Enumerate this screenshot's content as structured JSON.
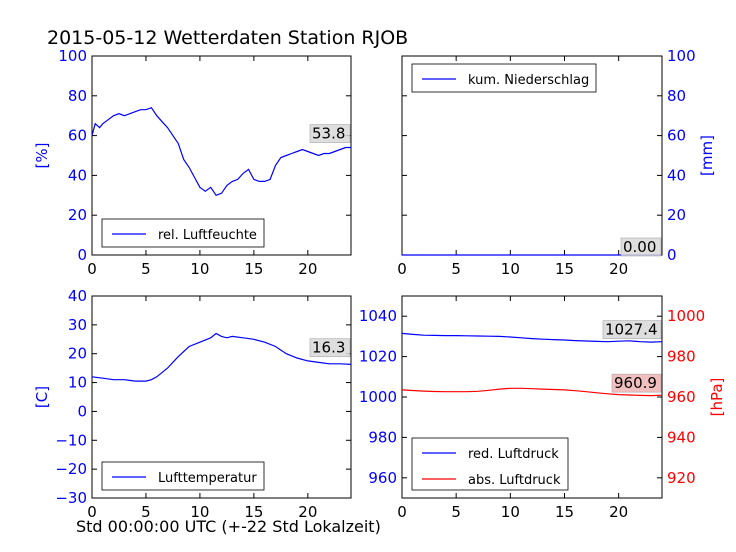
{
  "title": "2015-05-12 Wetterdaten Station RJOB",
  "xlabel": "Std 00:00:00 UTC (+-22 Std Lokalzeit)",
  "colors": {
    "blue": "#0000ff",
    "red": "#ff0000",
    "label_bg": "#d9d9d9",
    "label_bg_red": "#f0b4b4"
  },
  "chart_data": [
    {
      "type": "line",
      "panel": "top-left",
      "ylabel": "[%]",
      "ylim": [
        0,
        100
      ],
      "yticks": [
        "0",
        "20",
        "40",
        "60",
        "80",
        "100"
      ],
      "xlim": [
        0,
        24
      ],
      "xticks": [
        "0",
        "5",
        "10",
        "15",
        "20"
      ],
      "legend": "bottom-left",
      "series": [
        {
          "name": "rel. Luftfeuchte",
          "color": "#0000ff",
          "x": [
            0,
            0.3,
            0.7,
            1,
            1.5,
            2,
            2.5,
            3,
            3.5,
            4,
            4.5,
            5,
            5.5,
            6,
            6.5,
            7,
            7.5,
            8,
            8.5,
            9,
            9.5,
            10,
            10.5,
            11,
            11.5,
            12,
            12.5,
            13,
            13.5,
            14,
            14.5,
            15,
            15.5,
            16,
            16.5,
            17,
            17.5,
            18,
            18.5,
            19,
            19.5,
            20,
            20.5,
            21,
            21.5,
            22,
            22.5,
            23,
            23.5,
            24
          ],
          "y": [
            60,
            66,
            64,
            66,
            68,
            70,
            71,
            70,
            71,
            72,
            73,
            73,
            74,
            70,
            67,
            64,
            60,
            56,
            48,
            44,
            39,
            34,
            32,
            34,
            30,
            31,
            35,
            37,
            38,
            41,
            43,
            38,
            37,
            37,
            38,
            45,
            49,
            50,
            51,
            52,
            53,
            52,
            51,
            50,
            51,
            51,
            52,
            53,
            54,
            54
          ]
        }
      ],
      "last_value_label": "53.8"
    },
    {
      "type": "line",
      "panel": "top-right",
      "ylabel": "[mm]",
      "ylim": [
        0,
        100
      ],
      "yticks": [
        "0",
        "20",
        "40",
        "60",
        "80",
        "100"
      ],
      "xlim": [
        0,
        24
      ],
      "xticks": [
        "0",
        "5",
        "10",
        "15",
        "20"
      ],
      "legend": "top-left",
      "series": [
        {
          "name": "kum. Niederschlag",
          "color": "#0000ff",
          "x": [
            0,
            24
          ],
          "y": [
            0,
            0
          ]
        }
      ],
      "last_value_label": "0.00"
    },
    {
      "type": "line",
      "panel": "bottom-left",
      "ylabel": "[C]",
      "ylim": [
        -30,
        40
      ],
      "yticks": [
        "−30",
        "−20",
        "−10",
        "0",
        "10",
        "20",
        "30",
        "40"
      ],
      "xlim": [
        0,
        24
      ],
      "xticks": [
        "0",
        "5",
        "10",
        "15",
        "20"
      ],
      "legend": "bottom-left",
      "series": [
        {
          "name": "Lufttemperatur",
          "color": "#0000ff",
          "x": [
            0,
            1,
            2,
            3,
            4,
            5,
            5.5,
            6,
            7,
            8,
            9,
            10,
            11,
            11.5,
            12,
            12.5,
            13,
            14,
            15,
            16,
            17,
            18,
            19,
            20,
            21,
            22,
            23,
            24
          ],
          "y": [
            12,
            11.5,
            11,
            11,
            10.5,
            10.5,
            11,
            12,
            15,
            19,
            22.5,
            24,
            25.5,
            27,
            26,
            25.5,
            26,
            25.5,
            25,
            24,
            22.5,
            20,
            18.5,
            17.5,
            17,
            16.5,
            16.5,
            16.3
          ]
        }
      ],
      "last_value_label": "16.3"
    },
    {
      "type": "line",
      "panel": "bottom-right",
      "ylabel_left": "",
      "ylabel_right": "[hPa]",
      "ylim_left": [
        950,
        1050
      ],
      "ylim_right": [
        910,
        1010
      ],
      "yticks_left": [
        "960",
        "980",
        "1000",
        "1020",
        "1040"
      ],
      "yticks_right": [
        "920",
        "940",
        "960",
        "980",
        "1000"
      ],
      "xlim": [
        0,
        24
      ],
      "xticks": [
        "0",
        "5",
        "10",
        "15",
        "20"
      ],
      "legend": "bottom-left",
      "series": [
        {
          "name": "red. Luftdruck",
          "color": "#0000ff",
          "axis": "left",
          "x": [
            0,
            1,
            2,
            3,
            4,
            5,
            6,
            7,
            8,
            9,
            10,
            11,
            12,
            13,
            14,
            15,
            16,
            17,
            18,
            19,
            20,
            21,
            22,
            23,
            24
          ],
          "y": [
            1031.5,
            1031,
            1030.6,
            1030.5,
            1030.4,
            1030.4,
            1030.3,
            1030.2,
            1030.1,
            1030,
            1029.7,
            1029.3,
            1028.9,
            1028.6,
            1028.4,
            1028.2,
            1027.9,
            1027.7,
            1027.5,
            1027.4,
            1027.6,
            1027.8,
            1027.4,
            1027.2,
            1027.4
          ]
        },
        {
          "name": "abs. Luftdruck",
          "color": "#ff0000",
          "axis": "right",
          "x": [
            0,
            1,
            2,
            3,
            4,
            5,
            6,
            7,
            8,
            9,
            10,
            11,
            12,
            13,
            14,
            15,
            16,
            17,
            18,
            19,
            20,
            21,
            22,
            23,
            24
          ],
          "y": [
            963.5,
            963.2,
            962.9,
            962.7,
            962.6,
            962.6,
            962.6,
            962.8,
            963.3,
            963.9,
            964.3,
            964.3,
            964.1,
            963.9,
            963.7,
            963.5,
            963.1,
            962.6,
            962.1,
            961.6,
            961.2,
            961,
            960.8,
            960.7,
            960.9
          ]
        }
      ],
      "last_value_labels": {
        "left": "1027.4",
        "right": "960.9"
      }
    }
  ]
}
